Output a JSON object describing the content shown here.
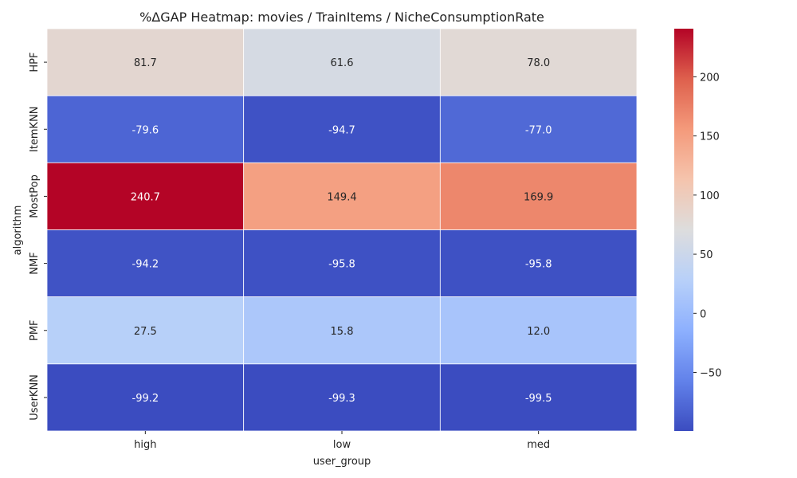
{
  "chart_data": {
    "type": "heatmap",
    "title": "%ΔGAP Heatmap: movies / TrainItems / NicheConsumptionRate",
    "xlabel": "user_group",
    "ylabel": "algorithm",
    "x_categories": [
      "high",
      "low",
      "med"
    ],
    "y_categories": [
      "HPF",
      "ItemKNN",
      "MostPop",
      "NMF",
      "PMF",
      "UserKNN"
    ],
    "values": [
      [
        81.7,
        61.6,
        78.0
      ],
      [
        -79.6,
        -94.7,
        -77.0
      ],
      [
        240.7,
        149.4,
        169.9
      ],
      [
        -94.2,
        -95.8,
        -95.8
      ],
      [
        27.5,
        15.8,
        12.0
      ],
      [
        -99.2,
        -99.3,
        -99.5
      ]
    ],
    "labels": [
      [
        "81.7",
        "61.6",
        "78.0"
      ],
      [
        "-79.6",
        "-94.7",
        "-77.0"
      ],
      [
        "240.7",
        "149.4",
        "169.9"
      ],
      [
        "-94.2",
        "-95.8",
        "-95.8"
      ],
      [
        "27.5",
        "15.8",
        "12.0"
      ],
      [
        "-99.2",
        "-99.3",
        "-99.5"
      ]
    ],
    "colormap": "coolwarm",
    "vmin": -99.5,
    "vmax": 240.7,
    "colorbar_ticks": [
      -50,
      0,
      50,
      100,
      150,
      200
    ],
    "colorbar_tick_labels": [
      "−50",
      "0",
      "50",
      "100",
      "150",
      "200"
    ],
    "legend_placement": "right colorbar",
    "grid": false
  }
}
